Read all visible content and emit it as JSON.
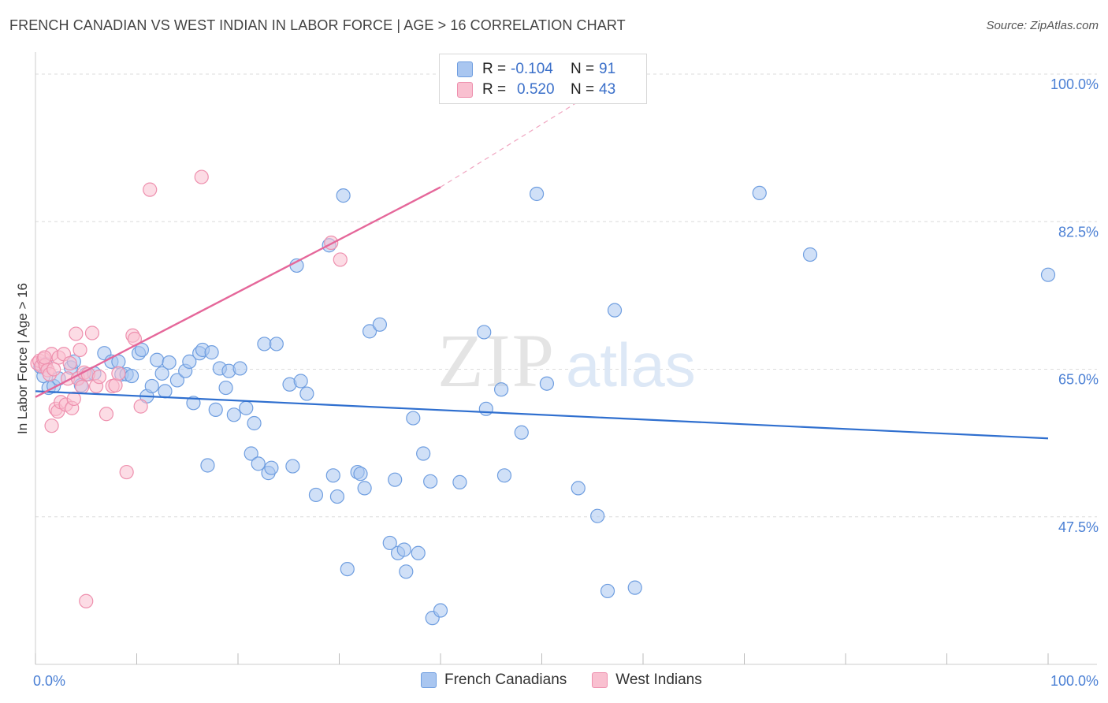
{
  "title": "FRENCH CANADIAN VS WEST INDIAN IN LABOR FORCE | AGE > 16 CORRELATION CHART",
  "source": "Source: ZipAtlas.com",
  "watermark": {
    "zip": "ZIP",
    "atlas": "atlas"
  },
  "legend": {
    "r_label": "R =",
    "n_label": "N =",
    "series": [
      {
        "name": "French Canadians",
        "r": "-0.104",
        "n": "91",
        "fill": "#a9c6f0",
        "stroke": "#6f9ee0"
      },
      {
        "name": "West Indians",
        "r": "0.520",
        "n": "43",
        "fill": "#f9c0d0",
        "stroke": "#ee90ae"
      }
    ]
  },
  "chart_data": {
    "type": "scatter",
    "title": "FRENCH CANADIAN VS WEST INDIAN IN LABOR FORCE | AGE > 16 CORRELATION CHART",
    "xlabel": "",
    "ylabel": "In Labor Force | Age > 16",
    "xlim": [
      0,
      100
    ],
    "ylim": [
      30,
      101.5
    ],
    "x_tick_labels": [
      {
        "value": 0,
        "label": "0.0%"
      },
      {
        "value": 100,
        "label": "100.0%"
      }
    ],
    "y_tick_labels": [
      {
        "value": 47.5,
        "label": "47.5%"
      },
      {
        "value": 65.0,
        "label": "65.0%"
      },
      {
        "value": 82.5,
        "label": "82.5%"
      },
      {
        "value": 100.0,
        "label": "100.0%"
      }
    ],
    "series": [
      {
        "name": "French Canadians",
        "color": "#6f9ee0",
        "points": [
          [
            0.5,
            65.3
          ],
          [
            0.8,
            64.2
          ],
          [
            1.0,
            65.6
          ],
          [
            1.3,
            62.8
          ],
          [
            1.8,
            63.0
          ],
          [
            2.3,
            63.9
          ],
          [
            3.5,
            65.2
          ],
          [
            3.8,
            65.9
          ],
          [
            4.2,
            63.9
          ],
          [
            4.5,
            63.1
          ],
          [
            5.0,
            64.4
          ],
          [
            5.8,
            64.5
          ],
          [
            6.8,
            66.9
          ],
          [
            7.5,
            65.9
          ],
          [
            8.2,
            65.9
          ],
          [
            8.5,
            64.4
          ],
          [
            9.0,
            64.4
          ],
          [
            9.5,
            64.2
          ],
          [
            10.2,
            66.9
          ],
          [
            10.5,
            67.3
          ],
          [
            11.0,
            61.8
          ],
          [
            11.5,
            63.0
          ],
          [
            12.0,
            66.1
          ],
          [
            12.5,
            64.5
          ],
          [
            12.8,
            62.4
          ],
          [
            13.2,
            65.8
          ],
          [
            14.0,
            63.7
          ],
          [
            14.8,
            64.8
          ],
          [
            15.2,
            65.9
          ],
          [
            15.6,
            61.0
          ],
          [
            16.2,
            66.9
          ],
          [
            16.5,
            67.3
          ],
          [
            17.0,
            53.6
          ],
          [
            17.4,
            67.0
          ],
          [
            17.8,
            60.2
          ],
          [
            18.2,
            65.1
          ],
          [
            18.8,
            62.8
          ],
          [
            19.1,
            64.8
          ],
          [
            19.6,
            59.6
          ],
          [
            20.2,
            65.1
          ],
          [
            20.8,
            60.4
          ],
          [
            21.3,
            55.0
          ],
          [
            21.6,
            58.6
          ],
          [
            22.0,
            53.8
          ],
          [
            22.6,
            68.0
          ],
          [
            23.0,
            52.7
          ],
          [
            23.3,
            53.3
          ],
          [
            23.8,
            68.0
          ],
          [
            25.1,
            63.2
          ],
          [
            25.4,
            53.5
          ],
          [
            25.8,
            77.3
          ],
          [
            26.2,
            63.6
          ],
          [
            26.8,
            62.1
          ],
          [
            27.7,
            50.1
          ],
          [
            29.0,
            79.7
          ],
          [
            29.4,
            52.4
          ],
          [
            29.8,
            49.9
          ],
          [
            30.4,
            85.6
          ],
          [
            30.8,
            41.3
          ],
          [
            31.8,
            52.8
          ],
          [
            32.1,
            52.6
          ],
          [
            32.5,
            50.9
          ],
          [
            33.0,
            69.5
          ],
          [
            34.0,
            70.3
          ],
          [
            35.0,
            44.4
          ],
          [
            35.5,
            51.9
          ],
          [
            35.8,
            43.2
          ],
          [
            36.4,
            43.6
          ],
          [
            36.6,
            41.0
          ],
          [
            37.3,
            59.2
          ],
          [
            37.8,
            43.2
          ],
          [
            38.3,
            55.0
          ],
          [
            39.0,
            51.7
          ],
          [
            39.2,
            35.5
          ],
          [
            40.0,
            36.4
          ],
          [
            41.9,
            51.6
          ],
          [
            44.3,
            69.4
          ],
          [
            44.5,
            60.3
          ],
          [
            46.0,
            62.6
          ],
          [
            46.3,
            52.4
          ],
          [
            48.0,
            57.5
          ],
          [
            49.5,
            85.8
          ],
          [
            50.5,
            63.3
          ],
          [
            53.6,
            50.9
          ],
          [
            55.5,
            47.6
          ],
          [
            56.5,
            38.7
          ],
          [
            57.2,
            72.0
          ],
          [
            59.2,
            39.1
          ],
          [
            71.5,
            85.9
          ],
          [
            76.5,
            78.6
          ],
          [
            100.0,
            76.2
          ]
        ],
        "trend": {
          "x": [
            0,
            100
          ],
          "y": [
            62.4,
            56.8
          ]
        }
      },
      {
        "name": "West Indians",
        "color": "#ee90ae",
        "points": [
          [
            0.2,
            65.7
          ],
          [
            0.4,
            66.0
          ],
          [
            0.6,
            65.4
          ],
          [
            0.8,
            66.2
          ],
          [
            1.0,
            65.5
          ],
          [
            1.2,
            64.9
          ],
          [
            1.4,
            64.4
          ],
          [
            1.6,
            66.8
          ],
          [
            1.8,
            65.0
          ],
          [
            2.0,
            60.3
          ],
          [
            2.2,
            60.0
          ],
          [
            2.3,
            66.4
          ],
          [
            2.5,
            61.1
          ],
          [
            2.8,
            66.8
          ],
          [
            3.0,
            60.8
          ],
          [
            3.2,
            63.9
          ],
          [
            3.4,
            65.7
          ],
          [
            3.6,
            60.4
          ],
          [
            3.8,
            61.5
          ],
          [
            4.0,
            69.2
          ],
          [
            4.2,
            63.9
          ],
          [
            4.4,
            67.3
          ],
          [
            4.6,
            62.9
          ],
          [
            4.8,
            64.6
          ],
          [
            5.0,
            37.5
          ],
          [
            5.2,
            64.4
          ],
          [
            5.6,
            69.3
          ],
          [
            6.0,
            63.0
          ],
          [
            6.3,
            64.1
          ],
          [
            7.0,
            59.7
          ],
          [
            7.6,
            63.0
          ],
          [
            7.9,
            63.1
          ],
          [
            8.2,
            64.5
          ],
          [
            9.0,
            52.8
          ],
          [
            9.6,
            69.0
          ],
          [
            9.8,
            68.6
          ],
          [
            10.4,
            60.6
          ],
          [
            11.3,
            86.3
          ],
          [
            16.4,
            87.8
          ],
          [
            29.2,
            80.0
          ],
          [
            30.1,
            78.0
          ],
          [
            1.6,
            58.3
          ],
          [
            0.9,
            66.4
          ]
        ],
        "trend": {
          "x": [
            0,
            40
          ],
          "y": [
            61.7,
            86.6
          ]
        },
        "trend_extension": {
          "x": [
            40,
            60
          ],
          "y": [
            86.6,
            101.5
          ]
        }
      }
    ]
  }
}
